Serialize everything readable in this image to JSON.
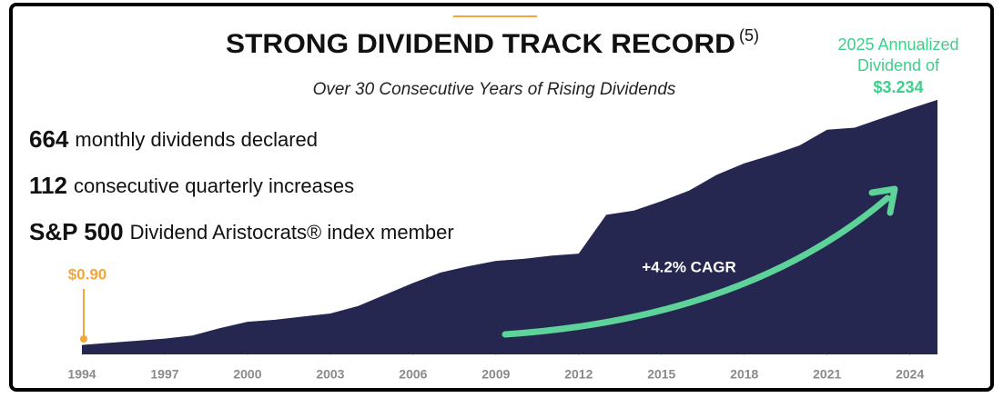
{
  "chart_data": {
    "type": "area",
    "title": "STRONG DIVIDEND TRACK RECORD",
    "title_superscript": "(5)",
    "subtitle": "Over 30 Consecutive Years of Rising Dividends",
    "stats": [
      {
        "number": "664",
        "text": "monthly dividends declared"
      },
      {
        "number": "112",
        "text": "consecutive quarterly increases"
      },
      {
        "number": "S&P 500",
        "text": "Dividend Aristocrats® index member"
      }
    ],
    "x": [
      1994,
      1995,
      1996,
      1997,
      1998,
      1999,
      2000,
      2001,
      2002,
      2003,
      2004,
      2005,
      2006,
      2007,
      2008,
      2009,
      2010,
      2011,
      2012,
      2013,
      2014,
      2015,
      2016,
      2017,
      2018,
      2019,
      2020,
      2021,
      2022,
      2023,
      2024,
      2025
    ],
    "values": [
      0.9,
      0.92,
      0.94,
      0.96,
      0.99,
      1.06,
      1.12,
      1.14,
      1.17,
      1.2,
      1.27,
      1.38,
      1.49,
      1.59,
      1.65,
      1.7,
      1.72,
      1.75,
      1.77,
      2.14,
      2.18,
      2.27,
      2.37,
      2.52,
      2.63,
      2.71,
      2.8,
      2.95,
      2.97,
      3.06,
      3.15,
      3.234
    ],
    "color": "#262751",
    "xlim": [
      1994,
      2025
    ],
    "xticks": [
      1994,
      1997,
      2000,
      2003,
      2006,
      2009,
      2012,
      2015,
      2018,
      2021,
      2024
    ],
    "ylim": [
      0.81,
      3.32
    ],
    "annotations": {
      "start_label": "$0.90",
      "end_note": [
        "2025 Annualized",
        "Dividend of"
      ],
      "end_label": "$3.234",
      "cagr": "+4.2% CAGR"
    }
  }
}
